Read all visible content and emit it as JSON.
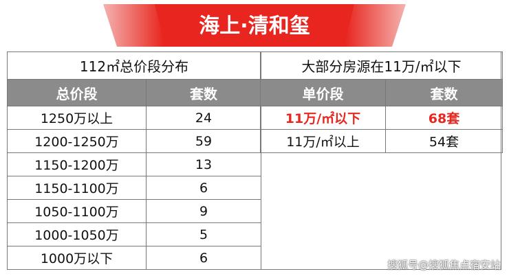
{
  "header": {
    "title": "海上·清和玺"
  },
  "left_table": {
    "caption": "112㎡总价段分布",
    "columns": [
      "总价段",
      "套数"
    ],
    "rows": [
      [
        "1250万以上",
        24
      ],
      [
        "1200-1250万",
        59
      ],
      [
        "1150-1200万",
        13
      ],
      [
        "1150-1100万",
        6
      ],
      [
        "1050-1100万",
        9
      ],
      [
        "1000-1050万",
        5
      ],
      [
        "1000万以下",
        6
      ]
    ]
  },
  "right_table": {
    "caption": "大部分房源在11万/㎡以下",
    "columns": [
      "单价段",
      "套数"
    ],
    "rows": [
      [
        "11万/㎡以下",
        "68套"
      ],
      [
        "11万/㎡以上",
        "54套"
      ]
    ]
  },
  "watermark": "搜狐号@搜狐焦点宿安站"
}
